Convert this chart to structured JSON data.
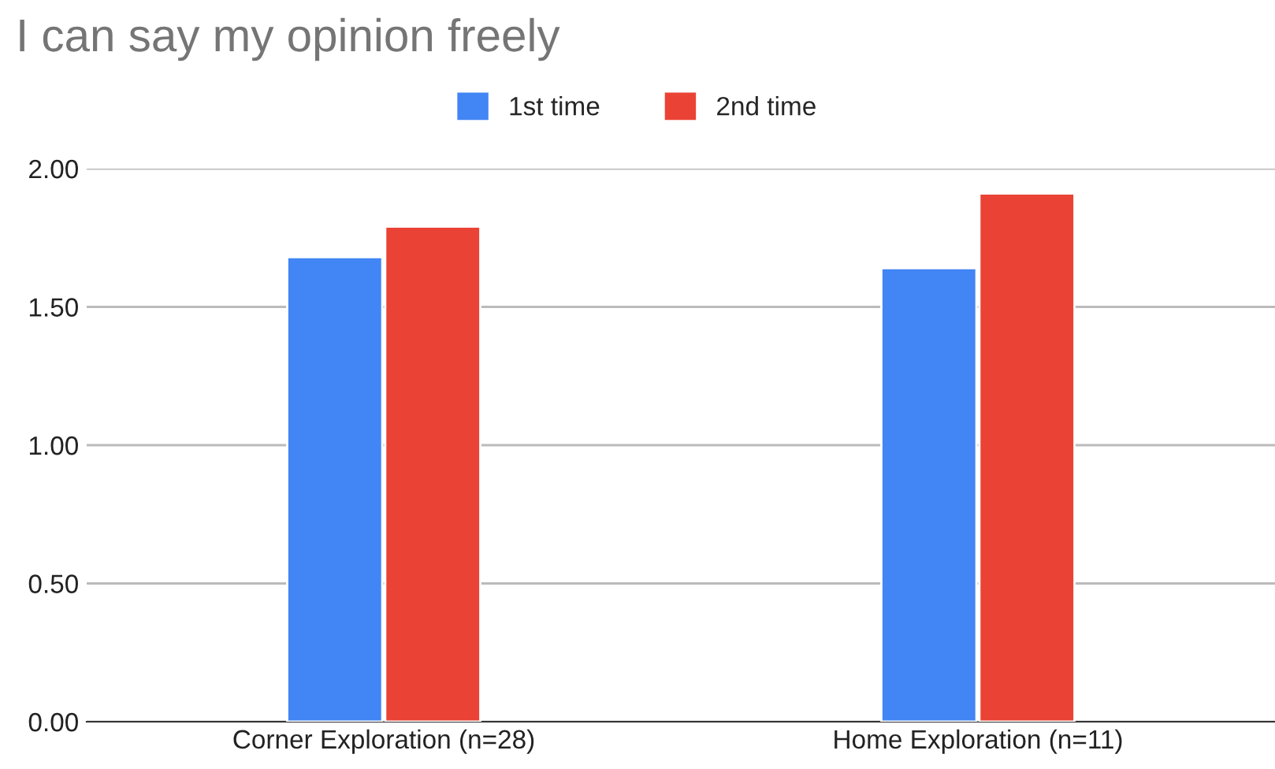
{
  "chart_data": {
    "type": "bar",
    "title": "I can say my opinion freely",
    "categories": [
      "Corner Exploration (n=28)",
      "Home Exploration (n=11)"
    ],
    "series": [
      {
        "name": "1st time",
        "color": "#4285f4",
        "values": [
          1.68,
          1.64
        ]
      },
      {
        "name": "2nd time",
        "color": "#ea4335",
        "values": [
          1.79,
          1.91
        ]
      }
    ],
    "ylim": [
      0,
      2
    ],
    "yticks": [
      {
        "value": 0,
        "label": "0.00"
      },
      {
        "value": 0.5,
        "label": "0.50"
      },
      {
        "value": 1,
        "label": "1.00"
      },
      {
        "value": 1.5,
        "label": "1.50"
      },
      {
        "value": 2,
        "label": "2.00"
      }
    ],
    "grid": "y",
    "legend": "top"
  }
}
